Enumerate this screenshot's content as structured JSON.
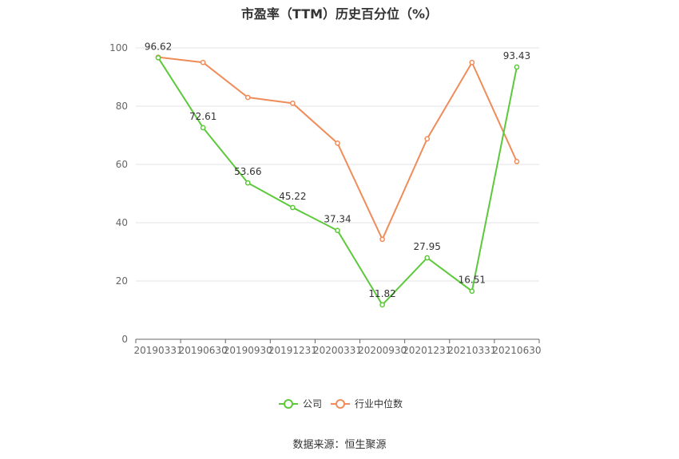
{
  "chart_data": {
    "type": "line",
    "title": "市盈率（TTM）历史百分位（%）",
    "source": "数据来源：恒生聚源",
    "categories": [
      "20190331",
      "20190630",
      "20190930",
      "20191231",
      "20200331",
      "20200930",
      "20201231",
      "20210331",
      "20210630"
    ],
    "ylim": [
      0,
      100
    ],
    "yticks": [
      0,
      20,
      40,
      60,
      80,
      100
    ],
    "grid": true,
    "legend_position": "bottom",
    "series": [
      {
        "name": "公司",
        "color": "#5cc93a",
        "values": [
          96.62,
          72.61,
          53.66,
          45.22,
          37.34,
          11.82,
          27.95,
          16.51,
          93.43
        ],
        "labels": [
          "96.62",
          "72.61",
          "53.66",
          "45.22",
          "37.34",
          "11.82",
          "27.95",
          "16.51",
          "93.43"
        ]
      },
      {
        "name": "行业中位数",
        "color": "#f08c5a",
        "values": [
          96.8,
          95.0,
          83.0,
          81.0,
          67.3,
          34.3,
          68.8,
          95.0,
          61.0
        ]
      }
    ]
  }
}
